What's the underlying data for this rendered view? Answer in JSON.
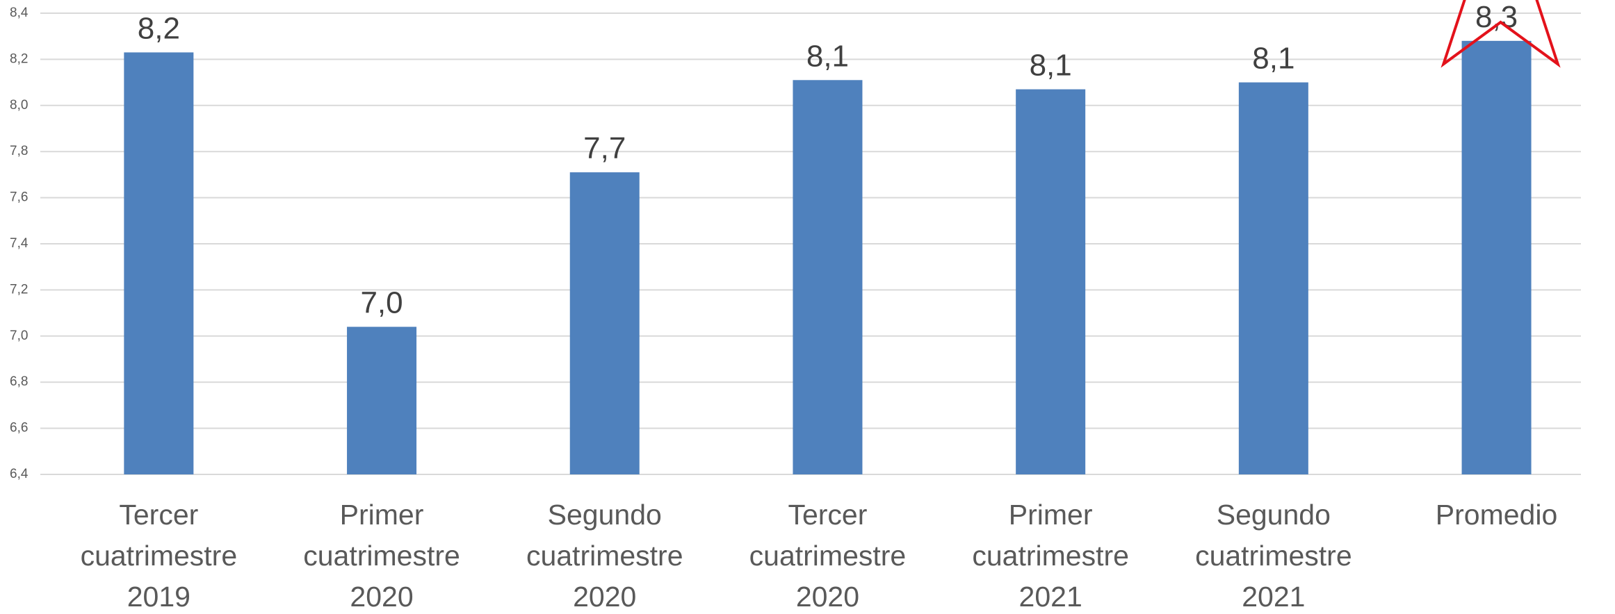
{
  "chart_data": {
    "type": "bar",
    "categories": [
      "Tercer cuatrimestre 2019",
      "Primer cuatrimestre 2020",
      "Segundo cuatrimestre 2020",
      "Tercer cuatrimestre 2020",
      "Primer cuatrimestre 2021",
      "Segundo cuatrimestre 2021",
      "Promedio"
    ],
    "values": [
      8.23,
      7.04,
      7.71,
      8.11,
      8.07,
      8.1,
      8.28
    ],
    "value_labels": [
      "8,2",
      "7,0",
      "7,7",
      "8,1",
      "8,1",
      "8,1",
      "8,3"
    ],
    "color": "#4f81bd",
    "ylim": [
      6.4,
      8.4
    ],
    "yticks": [
      {
        "value": 6.4,
        "label": "6,4"
      },
      {
        "value": 6.6,
        "label": "6,6"
      },
      {
        "value": 6.8,
        "label": "6,8"
      },
      {
        "value": 7.0,
        "label": "7,0"
      },
      {
        "value": 7.2,
        "label": "7,2"
      },
      {
        "value": 7.4,
        "label": "7,4"
      },
      {
        "value": 7.6,
        "label": "7,6"
      },
      {
        "value": 7.8,
        "label": "7,8"
      },
      {
        "value": 8.0,
        "label": "8,0"
      },
      {
        "value": 8.2,
        "label": "8,2"
      },
      {
        "value": 8.4,
        "label": "8,4"
      }
    ],
    "grid": true
  }
}
